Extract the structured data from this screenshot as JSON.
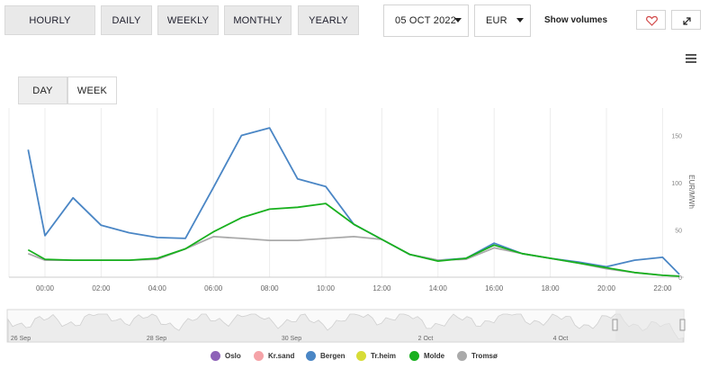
{
  "tabs": [
    {
      "label": "HOURLY",
      "active": true
    },
    {
      "label": "DAILY",
      "active": false
    },
    {
      "label": "WEEKLY",
      "active": false
    },
    {
      "label": "MONTHLY",
      "active": false
    },
    {
      "label": "YEARLY",
      "active": false
    }
  ],
  "date_select": {
    "value": "05 OCT 2022"
  },
  "currency_select": {
    "value": "EUR"
  },
  "show_volumes_label": "Show volumes",
  "range_tabs": [
    {
      "label": "DAY",
      "active": true
    },
    {
      "label": "WEEK",
      "active": false
    }
  ],
  "legend": [
    {
      "name": "Oslo",
      "color": "#8e63b8"
    },
    {
      "name": "Kr.sand",
      "color": "#f5a3a8"
    },
    {
      "name": "Bergen",
      "color": "#4a86c5"
    },
    {
      "name": "Tr.heim",
      "color": "#d7dc37"
    },
    {
      "name": "Molde",
      "color": "#18b01e"
    },
    {
      "name": "Tromsø",
      "color": "#aaaaaa"
    }
  ],
  "navigator_labels": [
    "26 Sep",
    "28 Sep",
    "30 Sep",
    "2 Oct",
    "4 Oct"
  ],
  "chart_data": {
    "type": "line",
    "ylabel": "EUR/MWh",
    "ylim": [
      0,
      160
    ],
    "yticks": [
      0,
      50,
      100,
      150
    ],
    "x": [
      -0.6,
      0,
      1,
      2,
      3,
      4,
      5,
      6,
      7,
      8,
      9,
      10,
      11,
      12,
      13,
      14,
      15,
      16,
      17,
      18,
      19,
      20,
      21,
      22,
      22.6
    ],
    "xticks": [
      "00:00",
      "02:00",
      "04:00",
      "06:00",
      "08:00",
      "10:00",
      "12:00",
      "14:00",
      "16:00",
      "18:00",
      "20:00",
      "22:00"
    ],
    "series": [
      {
        "name": "Bergen",
        "color": "#4a86c5",
        "values": [
          135,
          44,
          84,
          55,
          47,
          42,
          41,
          95,
          150,
          158,
          104,
          96,
          56,
          40,
          24,
          18,
          20,
          36,
          25,
          20,
          16,
          11,
          18,
          21,
          3
        ]
      },
      {
        "name": "Tromsø",
        "color": "#aaaaaa",
        "values": [
          25,
          18,
          18,
          18,
          18,
          19,
          30,
          43,
          41,
          39,
          39,
          41,
          43,
          40,
          24,
          18,
          19,
          31,
          25,
          20,
          15,
          9,
          5,
          2,
          1
        ]
      },
      {
        "name": "Molde",
        "color": "#18b01e",
        "values": [
          29,
          19,
          18,
          18,
          18,
          20,
          30,
          48,
          63,
          72,
          74,
          78,
          56,
          40,
          24,
          17,
          20,
          34,
          25,
          20,
          15,
          10,
          5,
          2,
          1
        ]
      }
    ]
  }
}
